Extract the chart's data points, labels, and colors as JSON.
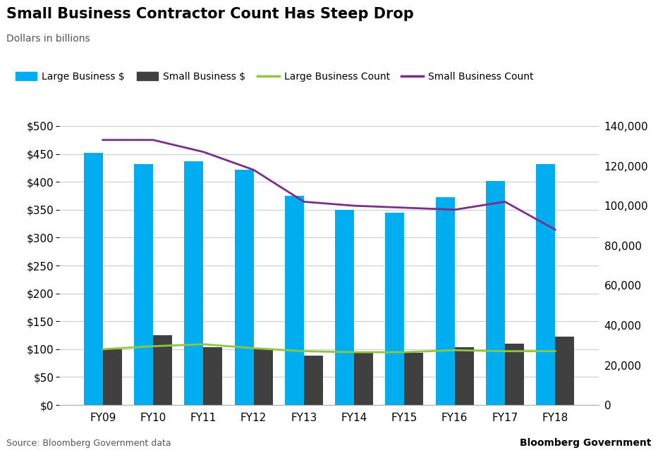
{
  "years": [
    "FY09",
    "FY10",
    "FY11",
    "FY12",
    "FY13",
    "FY14",
    "FY15",
    "FY16",
    "FY17",
    "FY18"
  ],
  "large_business_dollars": [
    452,
    432,
    437,
    422,
    375,
    350,
    345,
    372,
    401,
    432
  ],
  "small_business_dollars": [
    100,
    125,
    103,
    100,
    88,
    93,
    93,
    103,
    110,
    123
  ],
  "large_business_count": [
    28000,
    29500,
    30500,
    28500,
    27000,
    26500,
    26500,
    27500,
    27000,
    27000
  ],
  "small_business_count": [
    133000,
    133000,
    127000,
    118000,
    102000,
    100000,
    99000,
    98000,
    102000,
    88000
  ],
  "large_biz_color": "#00AEEF",
  "small_biz_color": "#404040",
  "large_count_color": "#8DC63F",
  "small_count_color": "#7B2D8B",
  "title": "Small Business Contractor Count Has Steep Drop",
  "subtitle": "Dollars in billions",
  "legend_labels": [
    "Large Business $",
    "Small Business $",
    "Large Business Count",
    "Small Business Count"
  ],
  "left_ylim": [
    0,
    500
  ],
  "right_ylim": [
    0,
    140000
  ],
  "left_yticks": [
    0,
    50,
    100,
    150,
    200,
    250,
    300,
    350,
    400,
    450,
    500
  ],
  "right_yticks": [
    0,
    20000,
    40000,
    60000,
    80000,
    100000,
    120000,
    140000
  ],
  "source_text": "Source: Bloomberg Government data",
  "credit_text": "Bloomberg Government",
  "background_color": "#FFFFFF",
  "grid_color": "#CCCCCC"
}
